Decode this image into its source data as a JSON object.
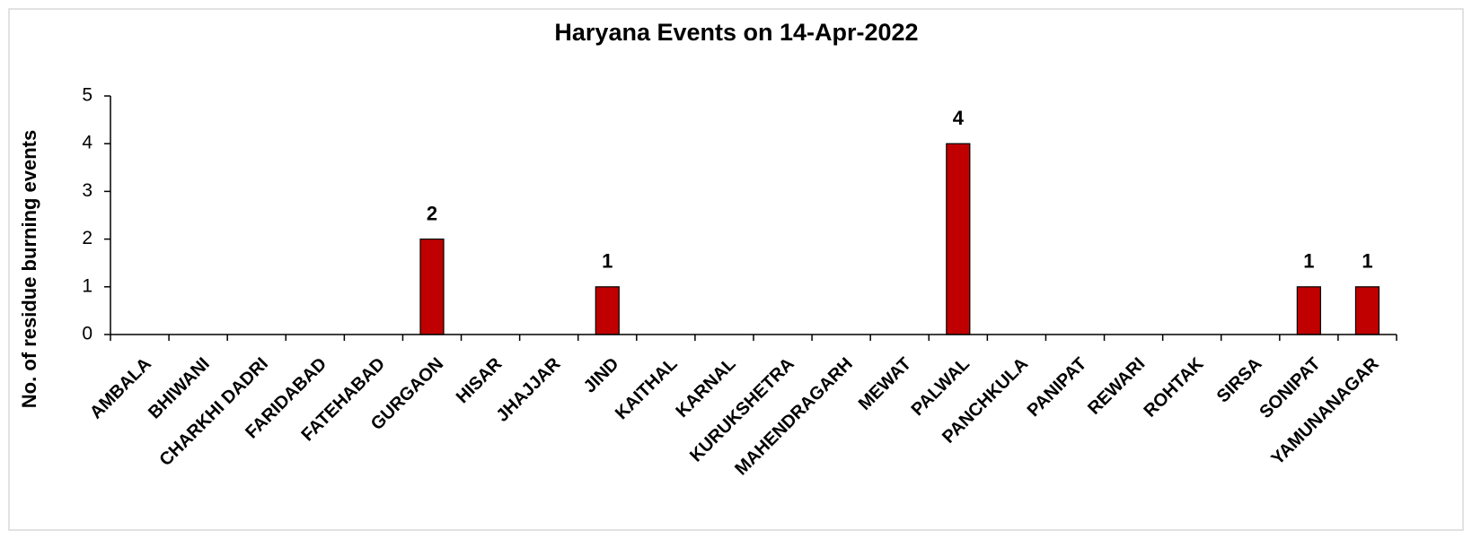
{
  "chart_data": {
    "type": "bar",
    "title": "Haryana Events on 14-Apr-2022",
    "y_label": "No. of residue burning events",
    "categories": [
      "AMBALA",
      "BHIWANI",
      "CHARKHI DADRI",
      "FARIDABAD",
      "FATEHABAD",
      "GURGAON",
      "HISAR",
      "JHAJJAR",
      "JIND",
      "KAITHAL",
      "KARNAL",
      "KURUKSHETRA",
      "MAHENDRAGARH",
      "MEWAT",
      "PALWAL",
      "PANCHKULA",
      "PANIPAT",
      "REWARI",
      "ROHTAK",
      "SIRSA",
      "SONIPAT",
      "YAMUNANAGAR"
    ],
    "values": [
      0,
      0,
      0,
      0,
      0,
      2,
      0,
      0,
      1,
      0,
      0,
      0,
      0,
      0,
      4,
      0,
      0,
      0,
      0,
      0,
      1,
      1
    ],
    "color": "#c00000",
    "label_color": "#c00000",
    "ylim": [
      0,
      5
    ],
    "yticks": [
      0,
      1,
      2,
      3,
      4,
      5
    ],
    "grid": false
  }
}
